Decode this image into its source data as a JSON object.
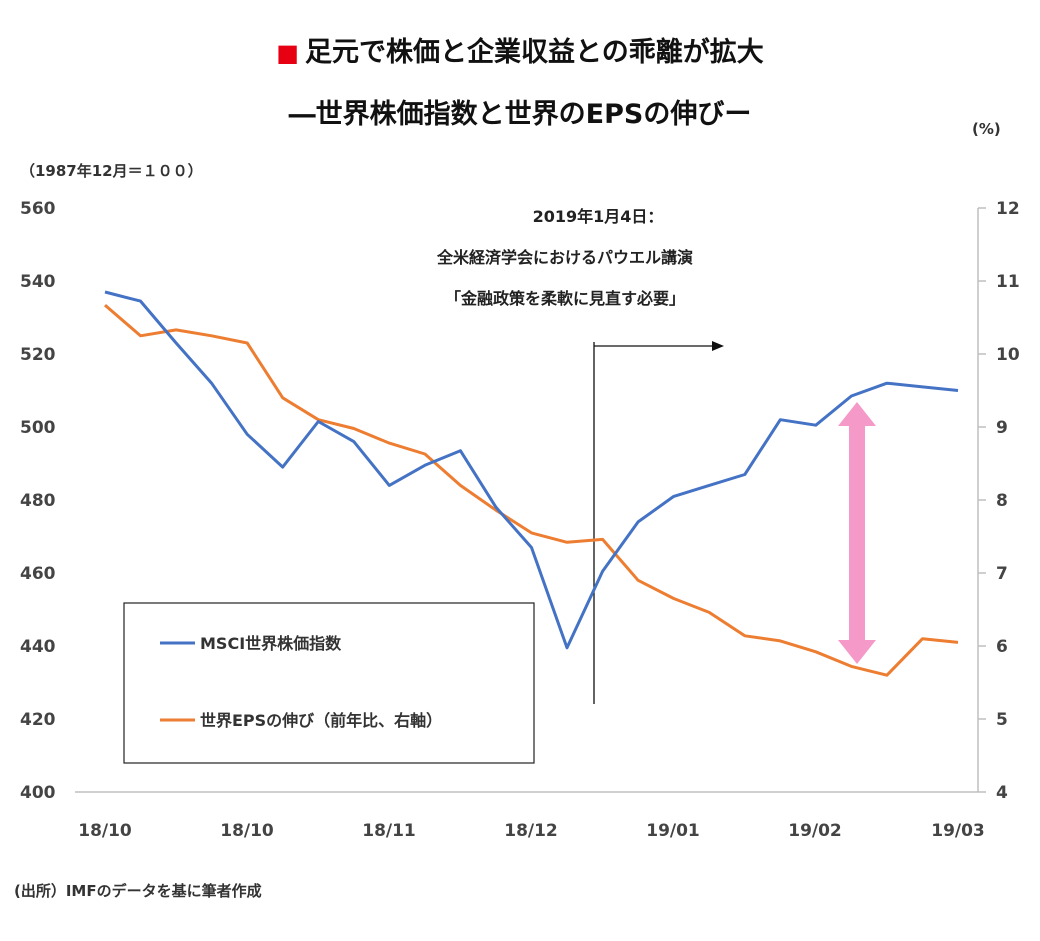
{
  "titles": {
    "marker": "■",
    "line1": "足元で株価と企業収益との乖離が拡大",
    "line2": "―世界株価指数と世界のEPSの伸びー"
  },
  "notes": {
    "left_unit": "（1987年12月＝１００）",
    "right_unit": "(%)",
    "source": "(出所）IMFのデータを基に筆者作成"
  },
  "annotation": {
    "line1": "2019年1月4日：",
    "line2": "全米経済学会におけるパウエル講演",
    "line3": "「金融政策を柔軟に見直す必要」"
  },
  "colors": {
    "msci": "#4472c4",
    "eps": "#ed7d31",
    "gap_arrow": "#f59ac8"
  },
  "chart_data": {
    "type": "line",
    "x_tick_labels": [
      "18/10",
      "18/10",
      "18/11",
      "18/12",
      "19/01",
      "19/02",
      "19/03"
    ],
    "y_left_ticks": [
      "560",
      "540",
      "520",
      "500",
      "480",
      "460",
      "440",
      "420",
      "400"
    ],
    "y_right_ticks": [
      "12",
      "11",
      "10",
      "9",
      "8",
      "7",
      "6",
      "5",
      "4"
    ],
    "ylim_left": [
      400,
      560
    ],
    "ylim_right": [
      4,
      12
    ],
    "grid": false,
    "legend_position": "bottom-left",
    "event_index": 20,
    "series": [
      {
        "name": "MSCI世界株価指数",
        "axis": "left",
        "values": [
          537,
          534.5,
          523,
          512,
          498,
          489,
          501.5,
          496,
          484,
          489.5,
          493.5,
          478,
          467,
          439.5,
          460.5,
          474,
          481,
          484,
          487,
          502,
          500.5,
          508.5,
          512,
          511,
          510
        ]
      },
      {
        "name": "世界EPSの伸び（前年比、右軸）",
        "axis": "right",
        "values": [
          10.67,
          10.25,
          10.33,
          10.25,
          10.15,
          9.4,
          9.1,
          8.98,
          8.78,
          8.63,
          8.2,
          7.86,
          7.55,
          7.42,
          7.46,
          6.9,
          6.65,
          6.46,
          6.14,
          6.07,
          5.92,
          5.72,
          5.6,
          6.1,
          6.05
        ]
      }
    ]
  }
}
